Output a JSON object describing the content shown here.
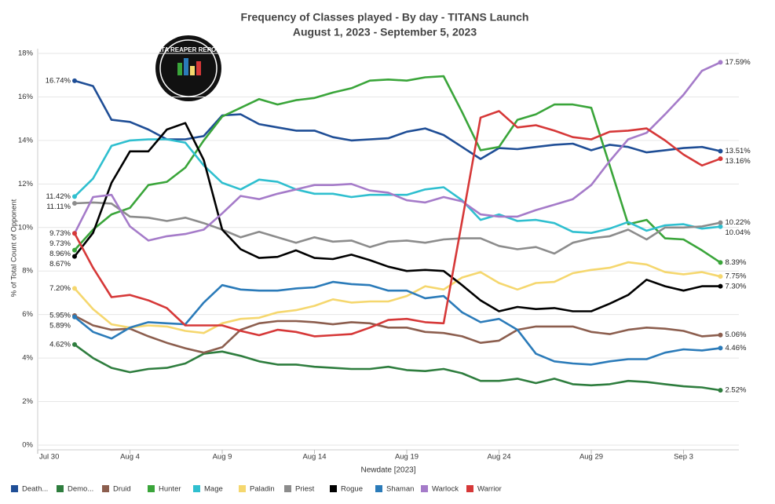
{
  "chart_data": {
    "type": "line",
    "title": "Frequency of Classes played - By day - TITANS Launch",
    "subtitle": "August 1, 2023 -  September 5, 2023",
    "logo": "DATA REAPER REPORT",
    "x_label": "Newdate [2023]",
    "y_label": "% of Total Count of Opponent",
    "grid": true,
    "legend": "bottom",
    "x": [
      "Aug 1",
      "Aug 2",
      "Aug 3",
      "Aug 4",
      "Aug 5",
      "Aug 6",
      "Aug 7",
      "Aug 8",
      "Aug 9",
      "Aug 10",
      "Aug 11",
      "Aug 12",
      "Aug 13",
      "Aug 14",
      "Aug 15",
      "Aug 16",
      "Aug 17",
      "Aug 18",
      "Aug 19",
      "Aug 20",
      "Aug 21",
      "Aug 22",
      "Aug 23",
      "Aug 24",
      "Aug 25",
      "Aug 26",
      "Aug 27",
      "Aug 28",
      "Aug 29",
      "Aug 30",
      "Aug 31",
      "Sep 1",
      "Sep 2",
      "Sep 3",
      "Sep 4",
      "Sep 5"
    ],
    "xlim": [
      "Jul 30",
      "Sep 6"
    ],
    "xticks": [
      "Jul 30",
      "Aug 4",
      "Aug 9",
      "Aug 14",
      "Aug 19",
      "Aug 24",
      "Aug 29",
      "Sep 3"
    ],
    "ylim": [
      0,
      18
    ],
    "yticks": [
      {
        "value": 0,
        "label": "0%"
      },
      {
        "value": 2,
        "label": "2%"
      },
      {
        "value": 4,
        "label": "4%"
      },
      {
        "value": 6,
        "label": "6%"
      },
      {
        "value": 8,
        "label": "8%"
      },
      {
        "value": 10,
        "label": "10%"
      },
      {
        "value": 12,
        "label": "12%"
      },
      {
        "value": 14,
        "label": "14%"
      },
      {
        "value": 16,
        "label": "16%"
      },
      {
        "value": 18,
        "label": "18%"
      }
    ],
    "series": [
      {
        "name": "Death...",
        "color": "#1f4e96",
        "values": [
          16.74,
          16.5,
          14.95,
          14.85,
          14.5,
          14.05,
          14.05,
          14.2,
          15.15,
          15.2,
          14.75,
          14.6,
          14.45,
          14.45,
          14.15,
          14.0,
          14.05,
          14.1,
          14.4,
          14.55,
          14.25,
          13.7,
          13.15,
          13.65,
          13.6,
          13.7,
          13.8,
          13.85,
          13.55,
          13.8,
          13.7,
          13.45,
          13.55,
          13.65,
          13.7,
          13.51
        ],
        "value_labels": [
          "16.74%",
          null,
          null,
          null,
          null,
          null,
          null,
          null,
          null,
          null,
          null,
          null,
          null,
          null,
          null,
          null,
          null,
          null,
          null,
          null,
          null,
          null,
          null,
          null,
          null,
          null,
          null,
          null,
          null,
          null,
          null,
          null,
          null,
          null,
          null,
          "13.51%"
        ]
      },
      {
        "name": "Demo...",
        "color": "#2e7d3e",
        "values": [
          4.62,
          4.0,
          3.55,
          3.35,
          3.5,
          3.55,
          3.75,
          4.2,
          4.3,
          4.1,
          3.85,
          3.7,
          3.7,
          3.6,
          3.55,
          3.5,
          3.5,
          3.6,
          3.45,
          3.4,
          3.5,
          3.3,
          2.95,
          2.95,
          3.05,
          2.85,
          3.05,
          2.8,
          2.75,
          2.8,
          2.95,
          2.9,
          2.8,
          2.7,
          2.65,
          2.52
        ],
        "value_labels": [
          "4.62%",
          null,
          null,
          null,
          null,
          null,
          null,
          null,
          null,
          null,
          null,
          null,
          null,
          null,
          null,
          null,
          null,
          null,
          null,
          null,
          null,
          null,
          null,
          null,
          null,
          null,
          null,
          null,
          null,
          null,
          null,
          null,
          null,
          null,
          null,
          "2.52%"
        ]
      },
      {
        "name": "Druid",
        "color": "#8c5e4e",
        "values": [
          5.95,
          5.5,
          5.3,
          5.35,
          5.0,
          4.7,
          4.45,
          4.25,
          4.5,
          5.3,
          5.6,
          5.7,
          5.7,
          5.65,
          5.55,
          5.65,
          5.6,
          5.4,
          5.4,
          5.2,
          5.15,
          5.0,
          4.7,
          4.8,
          5.3,
          5.45,
          5.45,
          5.45,
          5.2,
          5.1,
          5.3,
          5.4,
          5.35,
          5.25,
          5.0,
          5.06
        ],
        "value_labels": [
          "5.95%",
          null,
          null,
          null,
          null,
          null,
          null,
          null,
          null,
          null,
          null,
          null,
          null,
          null,
          null,
          null,
          null,
          null,
          null,
          null,
          null,
          null,
          null,
          null,
          null,
          null,
          null,
          null,
          null,
          null,
          null,
          null,
          null,
          null,
          null,
          "5.06%"
        ]
      },
      {
        "name": "Hunter",
        "color": "#3aa53a",
        "values": [
          8.96,
          9.9,
          10.6,
          10.9,
          11.95,
          12.1,
          12.75,
          14.0,
          15.1,
          15.5,
          15.9,
          15.65,
          15.85,
          15.95,
          16.2,
          16.4,
          16.75,
          16.8,
          16.75,
          16.9,
          16.95,
          15.3,
          13.55,
          13.7,
          14.95,
          15.2,
          15.65,
          15.65,
          15.5,
          12.85,
          10.15,
          10.35,
          9.5,
          9.45,
          8.95,
          8.39
        ],
        "value_labels": [
          "8.96%",
          null,
          null,
          null,
          null,
          null,
          null,
          null,
          null,
          null,
          null,
          null,
          null,
          null,
          null,
          null,
          null,
          null,
          null,
          null,
          null,
          null,
          null,
          null,
          null,
          null,
          null,
          null,
          null,
          null,
          null,
          null,
          null,
          null,
          null,
          "8.39%"
        ]
      },
      {
        "name": "Mage",
        "color": "#2fbfcf",
        "values": [
          11.42,
          12.25,
          13.75,
          14.0,
          14.05,
          14.05,
          13.9,
          12.85,
          12.05,
          11.75,
          12.2,
          12.1,
          11.75,
          11.55,
          11.55,
          11.4,
          11.5,
          11.5,
          11.5,
          11.75,
          11.85,
          11.25,
          10.35,
          10.6,
          10.3,
          10.35,
          10.2,
          9.8,
          9.75,
          9.95,
          10.25,
          9.85,
          10.1,
          10.15,
          9.95,
          10.04
        ],
        "value_labels": [
          "11.42%",
          null,
          null,
          null,
          null,
          null,
          null,
          null,
          null,
          null,
          null,
          null,
          null,
          null,
          null,
          null,
          null,
          null,
          null,
          null,
          null,
          null,
          null,
          null,
          null,
          null,
          null,
          null,
          null,
          null,
          null,
          null,
          null,
          null,
          null,
          "10.04%"
        ]
      },
      {
        "name": "Paladin",
        "color": "#f5d76e",
        "values": [
          7.2,
          6.25,
          5.55,
          5.4,
          5.5,
          5.45,
          5.25,
          5.15,
          5.6,
          5.8,
          5.85,
          6.1,
          6.2,
          6.4,
          6.7,
          6.55,
          6.6,
          6.6,
          6.85,
          7.3,
          7.15,
          7.7,
          7.95,
          7.45,
          7.15,
          7.45,
          7.5,
          7.9,
          8.05,
          8.15,
          8.4,
          8.3,
          7.95,
          7.85,
          7.95,
          7.75
        ],
        "value_labels": [
          "7.20%",
          null,
          null,
          null,
          null,
          null,
          null,
          null,
          null,
          null,
          null,
          null,
          null,
          null,
          null,
          null,
          null,
          null,
          null,
          null,
          null,
          null,
          null,
          null,
          null,
          null,
          null,
          null,
          null,
          null,
          null,
          null,
          null,
          null,
          null,
          "7.75%"
        ]
      },
      {
        "name": "Priest",
        "color": "#8c8c8c",
        "values": [
          11.11,
          11.15,
          11.1,
          10.5,
          10.45,
          10.3,
          10.45,
          10.2,
          9.9,
          9.55,
          9.8,
          9.55,
          9.3,
          9.55,
          9.35,
          9.4,
          9.1,
          9.35,
          9.4,
          9.3,
          9.45,
          9.5,
          9.5,
          9.15,
          9.0,
          9.1,
          8.8,
          9.3,
          9.5,
          9.6,
          9.9,
          9.45,
          10.0,
          10.0,
          10.05,
          10.22
        ],
        "value_labels": [
          "11.11%",
          null,
          null,
          null,
          null,
          null,
          null,
          null,
          null,
          null,
          null,
          null,
          null,
          null,
          null,
          null,
          null,
          null,
          null,
          null,
          null,
          null,
          null,
          null,
          null,
          null,
          null,
          null,
          null,
          null,
          null,
          null,
          null,
          null,
          null,
          "10.22%"
        ]
      },
      {
        "name": "Rogue",
        "color": "#000000",
        "values": [
          8.67,
          9.75,
          12.05,
          13.5,
          13.5,
          14.5,
          14.8,
          13.1,
          9.9,
          9.0,
          8.6,
          8.65,
          8.95,
          8.6,
          8.55,
          8.75,
          8.5,
          8.2,
          8.0,
          8.05,
          8.0,
          7.35,
          6.65,
          6.15,
          6.35,
          6.25,
          6.3,
          6.15,
          6.15,
          6.5,
          6.9,
          7.6,
          7.3,
          7.1,
          7.3,
          7.3
        ],
        "value_labels": [
          "8.67%",
          null,
          null,
          null,
          null,
          null,
          null,
          null,
          null,
          null,
          null,
          null,
          null,
          null,
          null,
          null,
          null,
          null,
          null,
          null,
          null,
          null,
          null,
          null,
          null,
          null,
          null,
          null,
          null,
          null,
          null,
          null,
          null,
          null,
          null,
          "7.30%"
        ]
      },
      {
        "name": "Shaman",
        "color": "#2b7bb9",
        "values": [
          5.89,
          5.2,
          4.9,
          5.4,
          5.65,
          5.6,
          5.55,
          6.55,
          7.35,
          7.15,
          7.1,
          7.1,
          7.2,
          7.25,
          7.5,
          7.4,
          7.35,
          7.1,
          7.1,
          6.75,
          6.85,
          6.1,
          5.65,
          5.8,
          5.3,
          4.2,
          3.85,
          3.75,
          3.7,
          3.85,
          3.95,
          3.95,
          4.25,
          4.4,
          4.35,
          4.46
        ],
        "value_labels": [
          "5.89%",
          null,
          null,
          null,
          null,
          null,
          null,
          null,
          null,
          null,
          null,
          null,
          null,
          null,
          null,
          null,
          null,
          null,
          null,
          null,
          null,
          null,
          null,
          null,
          null,
          null,
          null,
          null,
          null,
          null,
          null,
          null,
          null,
          null,
          null,
          "4.46%"
        ]
      },
      {
        "name": "Warlock",
        "color": "#a57bc9",
        "values": [
          9.73,
          11.4,
          11.5,
          10.05,
          9.4,
          9.6,
          9.7,
          9.9,
          10.65,
          11.45,
          11.3,
          11.55,
          11.75,
          11.95,
          11.95,
          12.0,
          11.7,
          11.6,
          11.25,
          11.15,
          11.4,
          11.2,
          10.6,
          10.5,
          10.5,
          10.8,
          11.05,
          11.3,
          11.95,
          13.05,
          14.05,
          14.35,
          15.2,
          16.1,
          17.2,
          17.59
        ],
        "value_labels": [
          "9.73%",
          null,
          null,
          null,
          null,
          null,
          null,
          null,
          null,
          null,
          null,
          null,
          null,
          null,
          null,
          null,
          null,
          null,
          null,
          null,
          null,
          null,
          null,
          null,
          null,
          null,
          null,
          null,
          null,
          null,
          null,
          null,
          null,
          null,
          null,
          "17.59%"
        ]
      },
      {
        "name": "Warrior",
        "color": "#d63838",
        "values": [
          9.73,
          8.15,
          6.8,
          6.9,
          6.65,
          6.3,
          5.5,
          5.5,
          5.5,
          5.25,
          5.05,
          5.3,
          5.2,
          5.0,
          5.05,
          5.1,
          5.4,
          5.75,
          5.8,
          5.65,
          5.6,
          10.3,
          15.05,
          15.35,
          14.6,
          14.7,
          14.45,
          14.15,
          14.05,
          14.4,
          14.45,
          14.55,
          14.0,
          13.35,
          12.85,
          13.16
        ],
        "value_labels": [
          "9.73%",
          null,
          null,
          null,
          null,
          null,
          null,
          null,
          null,
          null,
          null,
          null,
          null,
          null,
          null,
          null,
          null,
          null,
          null,
          null,
          null,
          null,
          null,
          null,
          null,
          null,
          null,
          null,
          null,
          null,
          null,
          null,
          null,
          null,
          null,
          "13.16%"
        ]
      }
    ]
  }
}
